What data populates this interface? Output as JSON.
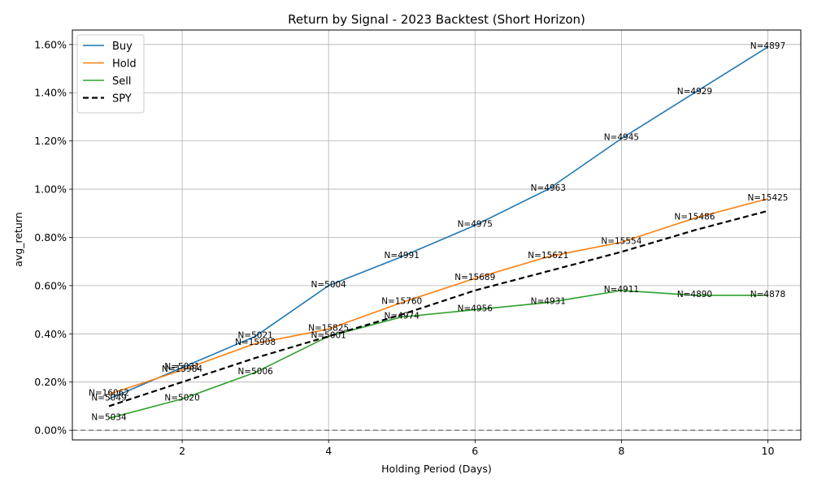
{
  "chart_data": {
    "type": "line",
    "title": "Return by Signal - 2023 Backtest (Short Horizon)",
    "xlabel": "Holding Period (Days)",
    "ylabel": "avg_return",
    "x": [
      1,
      2,
      3,
      4,
      5,
      6,
      7,
      8,
      9,
      10
    ],
    "xlim": [
      0.5,
      10.45
    ],
    "ylim": [
      -0.0004,
      0.0166
    ],
    "x_ticks": [
      2,
      4,
      6,
      8,
      10
    ],
    "y_ticks": [
      0.0,
      0.002,
      0.004,
      0.006,
      0.008,
      0.01,
      0.012,
      0.014,
      0.016
    ],
    "y_tick_labels": [
      "0.00%",
      "0.20%",
      "0.40%",
      "0.60%",
      "0.80%",
      "1.00%",
      "1.20%",
      "1.40%",
      "1.60%"
    ],
    "grid": true,
    "legend_position": "top-left",
    "reference_line": {
      "y": 0,
      "style": "dashed",
      "color": "#808080"
    },
    "series": [
      {
        "name": "Buy",
        "color": "#1f77b4",
        "style": "solid",
        "values": [
          0.0013,
          0.0026,
          0.0039,
          0.006,
          0.0072,
          0.0085,
          0.01,
          0.0121,
          0.014,
          0.0159
        ],
        "annotations": [
          "N=5049",
          "N=5031",
          "N=5021",
          "N=5004",
          "N=4991",
          "N=4975",
          "N=4963",
          "N=4945",
          "N=4929",
          "N=4897"
        ]
      },
      {
        "name": "Hold",
        "color": "#ff7f0e",
        "style": "solid",
        "values": [
          0.0015,
          0.0025,
          0.0036,
          0.0042,
          0.0053,
          0.0063,
          0.0072,
          0.0078,
          0.0088,
          0.0096
        ],
        "annotations": [
          "N=16062",
          "N=15984",
          "N=15908",
          "N=15825",
          "N=15760",
          "N=15689",
          "N=15621",
          "N=15554",
          "N=15486",
          "N=15425"
        ]
      },
      {
        "name": "Sell",
        "color": "#2ca02c",
        "style": "solid",
        "values": [
          0.0005,
          0.0013,
          0.0024,
          0.0039,
          0.0047,
          0.005,
          0.0053,
          0.0058,
          0.0056,
          0.0056
        ],
        "annotations": [
          "N=5034",
          "N=5020",
          "N=5006",
          "N=5001",
          "N=4974",
          "N=4956",
          "N=4931",
          "N=4911",
          "N=4890",
          "N=4878"
        ]
      },
      {
        "name": "SPY",
        "color": "#000000",
        "style": "dashed",
        "values": [
          0.001,
          0.002,
          0.003,
          0.0039,
          0.0048,
          0.0058,
          0.0066,
          0.0074,
          0.0083,
          0.0091
        ],
        "annotations": []
      }
    ]
  }
}
